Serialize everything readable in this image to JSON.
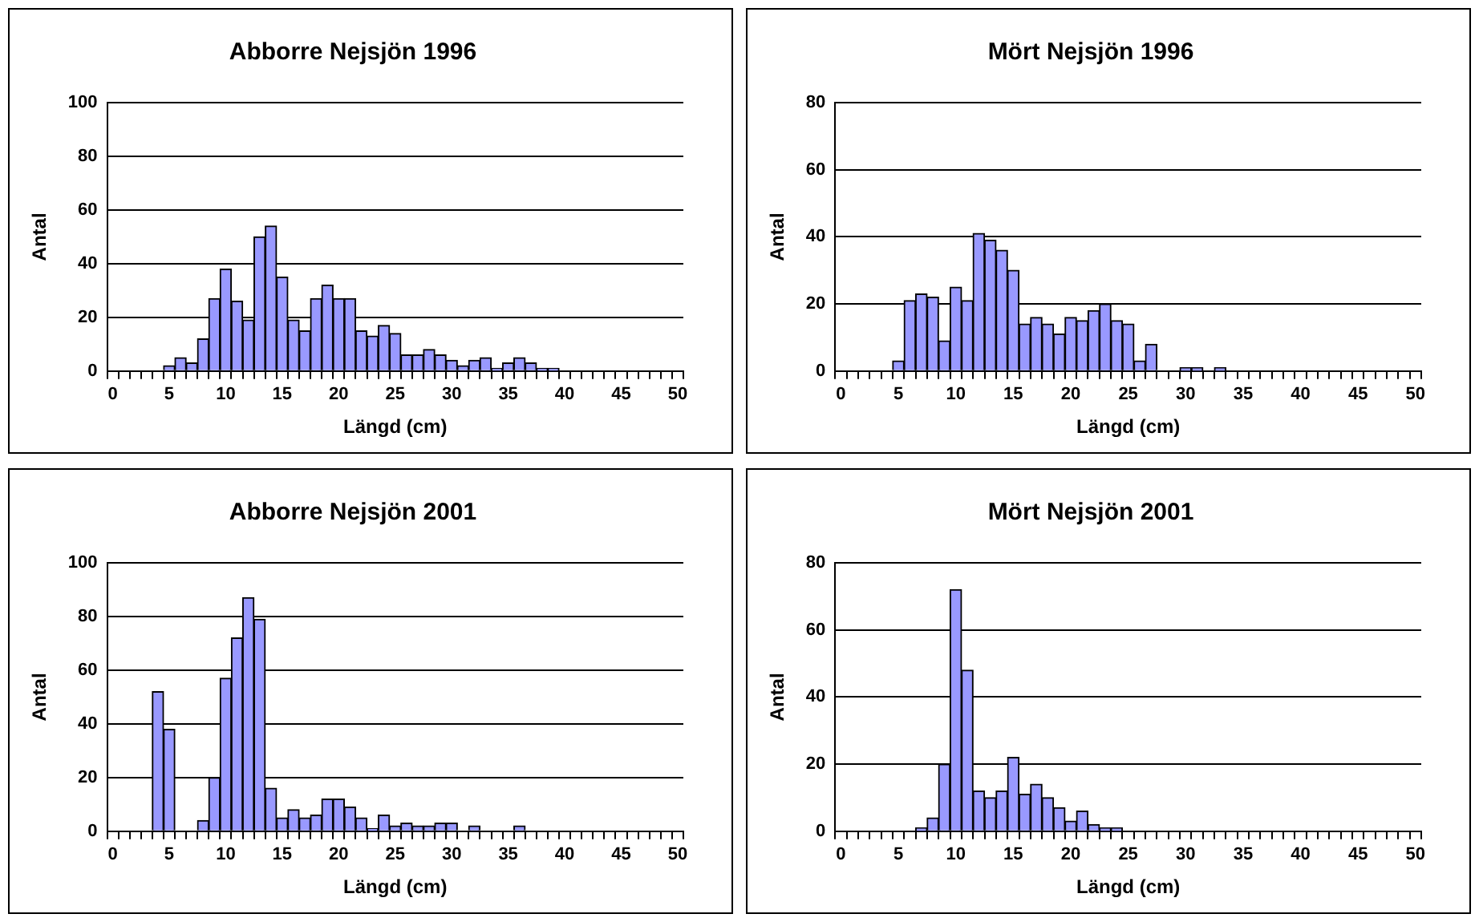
{
  "chart_data": [
    {
      "type": "bar",
      "title": "Abborre Nejsjön 1996",
      "xlabel": "Längd (cm)",
      "ylabel": "Antal",
      "categories": [
        "0",
        null,
        null,
        null,
        null,
        "5",
        null,
        null,
        null,
        null,
        "10",
        null,
        null,
        null,
        null,
        "15",
        null,
        null,
        null,
        null,
        "20",
        null,
        null,
        null,
        null,
        "25",
        null,
        null,
        null,
        null,
        "30",
        null,
        null,
        null,
        null,
        "35",
        null,
        null,
        null,
        null,
        "40",
        null,
        null,
        null,
        null,
        "45",
        null,
        null,
        null,
        null,
        "50"
      ],
      "values": [
        0,
        0,
        0,
        0,
        0,
        2,
        5,
        3,
        12,
        27,
        38,
        26,
        19,
        50,
        54,
        35,
        19,
        15,
        27,
        32,
        27,
        27,
        15,
        13,
        17,
        14,
        6,
        6,
        8,
        6,
        4,
        2,
        4,
        5,
        1,
        3,
        5,
        3,
        1,
        1,
        0,
        0,
        0,
        0,
        0,
        0,
        0,
        0,
        0,
        0,
        0
      ],
      "color": "#9999ff",
      "ylim": [
        0,
        100
      ],
      "yticks": [
        0,
        20,
        40,
        60,
        80,
        100
      ],
      "grid": "y"
    },
    {
      "type": "bar",
      "title": "Mört Nejsjön 1996",
      "xlabel": "Längd (cm)",
      "ylabel": "Antal",
      "categories": [
        "0",
        null,
        null,
        null,
        null,
        "5",
        null,
        null,
        null,
        null,
        "10",
        null,
        null,
        null,
        null,
        "15",
        null,
        null,
        null,
        null,
        "20",
        null,
        null,
        null,
        null,
        "25",
        null,
        null,
        null,
        null,
        "30",
        null,
        null,
        null,
        null,
        "35",
        null,
        null,
        null,
        null,
        "40",
        null,
        null,
        null,
        null,
        "45",
        null,
        null,
        null,
        null,
        "50"
      ],
      "values": [
        0,
        0,
        0,
        0,
        0,
        3,
        21,
        23,
        22,
        9,
        25,
        21,
        41,
        39,
        36,
        30,
        14,
        16,
        14,
        11,
        16,
        15,
        18,
        20,
        15,
        14,
        3,
        8,
        0,
        0,
        1,
        1,
        0,
        1,
        0,
        0,
        0,
        0,
        0,
        0,
        0,
        0,
        0,
        0,
        0,
        0,
        0,
        0,
        0,
        0,
        0
      ],
      "color": "#9999ff",
      "ylim": [
        0,
        80
      ],
      "yticks": [
        0,
        20,
        40,
        60,
        80
      ],
      "grid": "y"
    },
    {
      "type": "bar",
      "title": "Abborre Nejsjön 2001",
      "xlabel": "Längd (cm)",
      "ylabel": "Antal",
      "categories": [
        "0",
        null,
        null,
        null,
        null,
        "5",
        null,
        null,
        null,
        null,
        "10",
        null,
        null,
        null,
        null,
        "15",
        null,
        null,
        null,
        null,
        "20",
        null,
        null,
        null,
        null,
        "25",
        null,
        null,
        null,
        null,
        "30",
        null,
        null,
        null,
        null,
        "35",
        null,
        null,
        null,
        null,
        "40",
        null,
        null,
        null,
        null,
        "45",
        null,
        null,
        null,
        null,
        "50"
      ],
      "values": [
        0,
        0,
        0,
        0,
        52,
        38,
        0,
        0,
        4,
        20,
        57,
        72,
        87,
        79,
        16,
        5,
        8,
        5,
        6,
        12,
        12,
        9,
        5,
        1,
        6,
        2,
        3,
        2,
        2,
        3,
        3,
        0,
        2,
        0,
        0,
        0,
        2,
        0,
        0,
        0,
        0,
        0,
        0,
        0,
        0,
        0,
        0,
        0,
        0,
        0,
        0
      ],
      "color": "#9999ff",
      "ylim": [
        0,
        100
      ],
      "yticks": [
        0,
        20,
        40,
        60,
        80,
        100
      ],
      "grid": "y"
    },
    {
      "type": "bar",
      "title": "Mört Nejsjön 2001",
      "xlabel": "Längd (cm)",
      "ylabel": "Antal",
      "categories": [
        "0",
        null,
        null,
        null,
        null,
        "5",
        null,
        null,
        null,
        null,
        "10",
        null,
        null,
        null,
        null,
        "15",
        null,
        null,
        null,
        null,
        "20",
        null,
        null,
        null,
        null,
        "25",
        null,
        null,
        null,
        null,
        "30",
        null,
        null,
        null,
        null,
        "35",
        null,
        null,
        null,
        null,
        "40",
        null,
        null,
        null,
        null,
        "45",
        null,
        null,
        null,
        null,
        "50"
      ],
      "values": [
        0,
        0,
        0,
        0,
        0,
        0,
        0,
        1,
        4,
        20,
        72,
        48,
        12,
        10,
        12,
        22,
        11,
        14,
        10,
        7,
        3,
        6,
        2,
        1,
        1,
        0,
        0,
        0,
        0,
        0,
        0,
        0,
        0,
        0,
        0,
        0,
        0,
        0,
        0,
        0,
        0,
        0,
        0,
        0,
        0,
        0,
        0,
        0,
        0,
        0,
        0
      ],
      "color": "#9999ff",
      "ylim": [
        0,
        80
      ],
      "yticks": [
        0,
        20,
        40,
        60,
        80
      ],
      "grid": "y"
    }
  ]
}
